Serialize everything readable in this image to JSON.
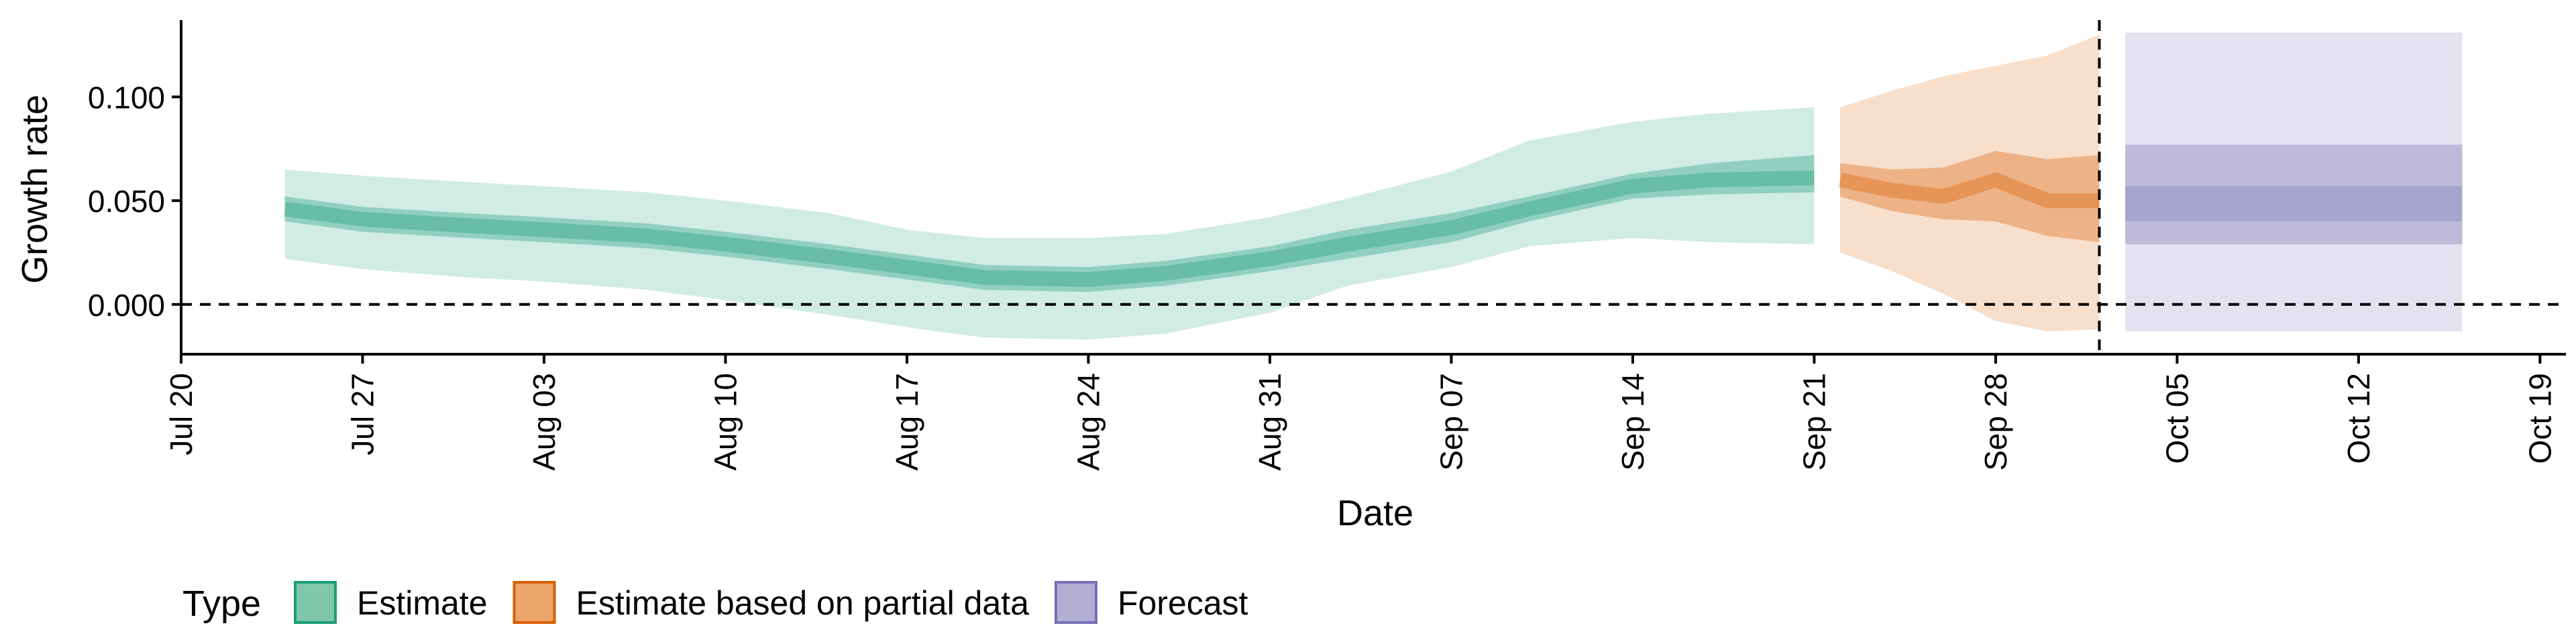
{
  "chart_data": {
    "type": "area",
    "xlabel": "Date",
    "ylabel": "Growth rate",
    "x_ticks": [
      {
        "date": "2020-07-20",
        "label": "Jul 20"
      },
      {
        "date": "2020-07-27",
        "label": "Jul 27"
      },
      {
        "date": "2020-08-03",
        "label": "Aug 03"
      },
      {
        "date": "2020-08-10",
        "label": "Aug 10"
      },
      {
        "date": "2020-08-17",
        "label": "Aug 17"
      },
      {
        "date": "2020-08-24",
        "label": "Aug 24"
      },
      {
        "date": "2020-08-31",
        "label": "Aug 31"
      },
      {
        "date": "2020-09-07",
        "label": "Sep 07"
      },
      {
        "date": "2020-09-14",
        "label": "Sep 14"
      },
      {
        "date": "2020-09-21",
        "label": "Sep 21"
      },
      {
        "date": "2020-09-28",
        "label": "Sep 28"
      },
      {
        "date": "2020-10-05",
        "label": "Oct 05"
      },
      {
        "date": "2020-10-12",
        "label": "Oct 12"
      },
      {
        "date": "2020-10-19",
        "label": "Oct 19"
      }
    ],
    "y_ticks": [
      {
        "value": 0.0,
        "label": "0.000"
      },
      {
        "value": 0.05,
        "label": "0.050"
      },
      {
        "value": 0.1,
        "label": "0.100"
      }
    ],
    "xlim": [
      "2020-07-20",
      "2020-10-20"
    ],
    "ylim": [
      -0.024,
      0.137
    ],
    "hline": 0,
    "vline": "2020-10-02",
    "grid": false,
    "legend": {
      "position": "bottom-left",
      "title": "Type",
      "entries": [
        {
          "label": "Estimate",
          "fill": "#7fc6ab",
          "border": "#1b9e77"
        },
        {
          "label": "Estimate based on partial data",
          "fill": "#eba46a",
          "border": "#d95f02"
        },
        {
          "label": "Forecast",
          "fill": "#b2aed4",
          "border": "#7570b3"
        }
      ]
    },
    "series": [
      {
        "name": "Estimate",
        "color": "#1b9e77",
        "x": [
          "2020-07-24",
          "2020-07-27",
          "2020-07-31",
          "2020-08-03",
          "2020-08-07",
          "2020-08-10",
          "2020-08-14",
          "2020-08-17",
          "2020-08-20",
          "2020-08-24",
          "2020-08-27",
          "2020-08-31",
          "2020-09-03",
          "2020-09-07",
          "2020-09-10",
          "2020-09-14",
          "2020-09-17",
          "2020-09-21"
        ],
        "median": [
          0.046,
          0.041,
          0.038,
          0.036,
          0.033,
          0.029,
          0.023,
          0.018,
          0.013,
          0.012,
          0.015,
          0.022,
          0.029,
          0.037,
          0.046,
          0.057,
          0.06,
          0.061
        ],
        "lower_50": [
          0.04,
          0.035,
          0.032,
          0.03,
          0.027,
          0.023,
          0.017,
          0.012,
          0.007,
          0.006,
          0.009,
          0.016,
          0.022,
          0.03,
          0.04,
          0.051,
          0.053,
          0.054
        ],
        "upper_50": [
          0.052,
          0.047,
          0.044,
          0.042,
          0.039,
          0.035,
          0.029,
          0.024,
          0.019,
          0.018,
          0.021,
          0.028,
          0.036,
          0.044,
          0.052,
          0.063,
          0.068,
          0.072
        ],
        "lower_90": [
          0.022,
          0.017,
          0.013,
          0.011,
          0.007,
          0.002,
          -0.005,
          -0.011,
          -0.016,
          -0.017,
          -0.014,
          -0.004,
          0.009,
          0.018,
          0.028,
          0.032,
          0.03,
          0.029
        ],
        "upper_90": [
          0.065,
          0.062,
          0.059,
          0.057,
          0.054,
          0.05,
          0.044,
          0.036,
          0.032,
          0.032,
          0.034,
          0.042,
          0.051,
          0.064,
          0.079,
          0.088,
          0.092,
          0.095
        ]
      },
      {
        "name": "Estimate based on partial data",
        "color": "#d95f02",
        "x": [
          "2020-09-22",
          "2020-09-24",
          "2020-09-26",
          "2020-09-28",
          "2020-09-30",
          "2020-10-02"
        ],
        "median": [
          0.06,
          0.055,
          0.052,
          0.06,
          0.05,
          0.05
        ],
        "lower_50": [
          0.052,
          0.045,
          0.041,
          0.04,
          0.033,
          0.03
        ],
        "upper_50": [
          0.068,
          0.065,
          0.066,
          0.074,
          0.07,
          0.072
        ],
        "lower_90": [
          0.025,
          0.016,
          0.005,
          -0.008,
          -0.013,
          -0.012
        ],
        "upper_90": [
          0.095,
          0.103,
          0.11,
          0.115,
          0.12,
          0.13
        ]
      },
      {
        "name": "Forecast",
        "color": "#7570b3",
        "x": [
          "2020-10-03",
          "2020-10-16"
        ],
        "median": [
          0.049,
          0.049
        ],
        "lower_25": [
          0.04,
          0.04
        ],
        "upper_25": [
          0.057,
          0.057
        ],
        "lower_50": [
          0.029,
          0.029
        ],
        "upper_50": [
          0.077,
          0.077
        ],
        "lower_90": [
          -0.013,
          -0.013
        ],
        "upper_90": [
          0.131,
          0.131
        ]
      }
    ]
  }
}
